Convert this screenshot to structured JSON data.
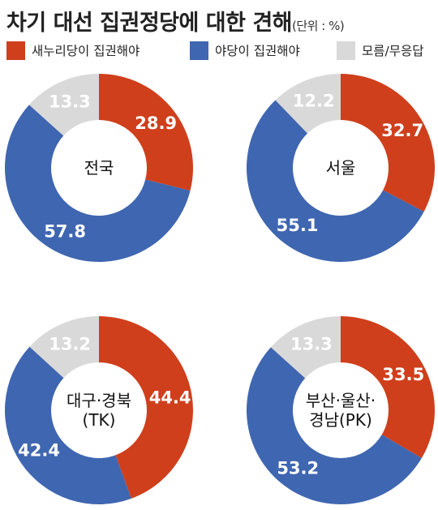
{
  "title": "차기 대선 집권정당에 대한 견해",
  "unit": "(단위 : %)",
  "colors": {
    "saenuri": "#cf3f1c",
    "opposition": "#3f66b0",
    "unknown": "#d9d9d9"
  },
  "chart_data": {
    "type": "pie",
    "title": "차기 대선 집권정당에 대한 견해",
    "unit": "%",
    "series_names": [
      "새누리당이 집권해야",
      "야당이 집권해야",
      "모름/무응답"
    ],
    "charts": [
      {
        "name": "전국",
        "values": [
          28.9,
          57.8,
          13.3
        ]
      },
      {
        "name": "서울",
        "values": [
          32.7,
          55.1,
          12.2
        ]
      },
      {
        "name": "대구·경북 (TK)",
        "values": [
          44.4,
          42.4,
          13.2
        ]
      },
      {
        "name": "부산·울산·경남(PK)",
        "values": [
          33.5,
          53.2,
          13.3
        ]
      }
    ]
  }
}
